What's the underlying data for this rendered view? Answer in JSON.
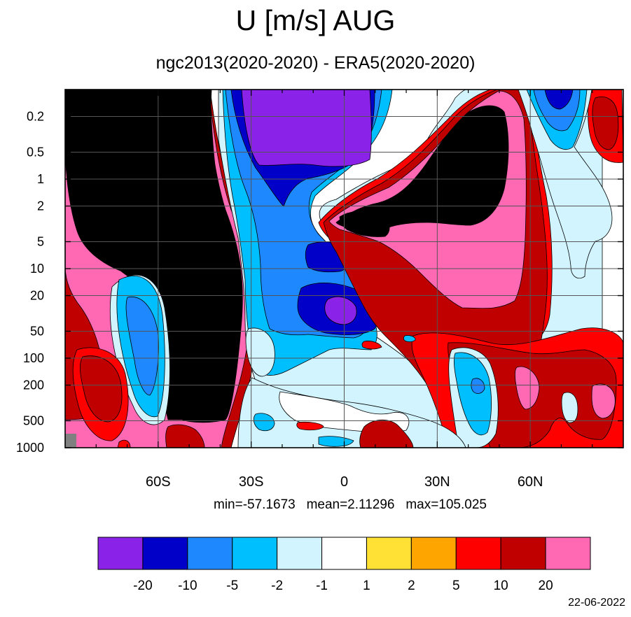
{
  "title": "U [m/s] AUG",
  "subtitle": "ngc2013(2020-2020) - ERA5(2020-2020)",
  "stats": {
    "min": "min=-57.1673",
    "mean": "mean=2.11296",
    "max": "max=105.025"
  },
  "date": "22-06-2022",
  "chart_data": {
    "type": "heatmap",
    "x_axis": {
      "ticks": [
        -60,
        -30,
        0,
        30,
        60
      ],
      "tick_labels": [
        "60S",
        "30S",
        "0",
        "30N",
        "60N"
      ],
      "range": [
        -90,
        90
      ]
    },
    "y_axis": {
      "scale": "log",
      "reversed": true,
      "ticks": [
        0.2,
        0.5,
        1,
        2,
        5,
        10,
        20,
        50,
        100,
        200,
        500,
        1000
      ],
      "tick_labels": [
        "0.2",
        "0.5",
        "1",
        "2",
        "5",
        "10",
        "20",
        "50",
        "100",
        "200",
        "500",
        "1000"
      ],
      "range": [
        0.1,
        1000
      ]
    },
    "grid": true,
    "colorbar": {
      "levels": [
        "-20",
        "-10",
        "-5",
        "-2",
        "-1",
        "1",
        "2",
        "5",
        "10",
        "20"
      ],
      "colors": [
        "#8b22e8",
        "#0000c8",
        "#1e88ff",
        "#00bfff",
        "#d2f4ff",
        "#ffffff",
        "#ffe035",
        "#ffa500",
        "#ff0000",
        "#c00000",
        "#ff69b4"
      ]
    },
    "min": -57.1673,
    "mean": 2.11296,
    "max": 105.025
  }
}
